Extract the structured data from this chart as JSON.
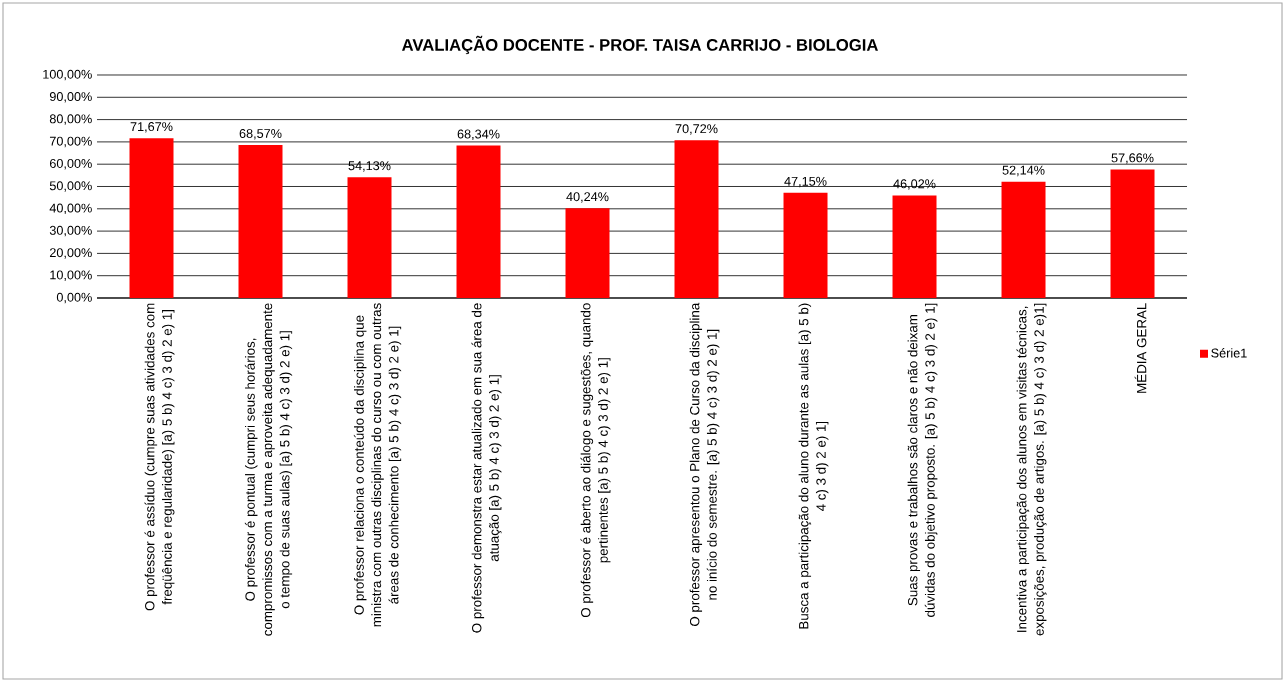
{
  "chart_data": {
    "type": "bar",
    "title": "AVALIAÇÃO DOCENTE - PROF. TAISA CARRIJO - BIOLOGIA",
    "categories": [
      "O professor é assíduo (cumpre suas atividades com freqüência e regularidade) [a) 5 b) 4 c) 3 d) 2 e) 1]",
      "O professor é pontual (cumpri seus horários, compromissos com a turma e aproveita adequadamente o tempo de suas aulas) [a) 5 b) 4 c) 3 d) 2 e) 1]",
      "O professor relaciona o conteúdo da disciplina que ministra com outras disciplinas do curso ou com outras áreas de conhecimento [a) 5 b) 4 c) 3 d) 2 e) 1]",
      "O professor demonstra estar atualizado em sua área de atuação [a) 5 b) 4 c) 3 d) 2 e) 1]",
      "O professor é aberto ao diálogo e sugestões, quando pertinentes [a) 5 b) 4 c) 3 d) 2 e) 1]",
      "O professor apresentou o Plano de Curso da disciplina no início do semestre. [a) 5 b) 4 c) 3 d) 2 e) 1]",
      "Busca a participação do aluno durante as aulas [a) 5 b) 4 c) 3 d) 2 e) 1]",
      "Suas provas e trabalhos são claros e não deixam dúvidas do objetivo proposto. [a) 5 b) 4 c) 3 d) 2 e) 1]",
      "Incentiva a participação dos alunos em visitas técnicas, exposições, produção de artigos. [a) 5 b) 4 c) 3 d) 2 e)1]",
      "MÉDIA GERAL"
    ],
    "series": [
      {
        "name": "Série1",
        "color": "#ff0000",
        "values": [
          71.67,
          68.57,
          54.13,
          68.34,
          40.24,
          70.72,
          47.15,
          46.02,
          52.14,
          57.66
        ],
        "value_labels": [
          "71,67%",
          "68,57%",
          "54,13%",
          "68,34%",
          "40,24%",
          "70,72%",
          "47,15%",
          "46,02%",
          "52,14%",
          "57,66%"
        ]
      }
    ],
    "ylim": [
      0,
      100
    ],
    "yticks": [
      {
        "value": 0,
        "label": "0,00%"
      },
      {
        "value": 10,
        "label": "10,00%"
      },
      {
        "value": 20,
        "label": "20,00%"
      },
      {
        "value": 30,
        "label": "30,00%"
      },
      {
        "value": 40,
        "label": "40,00%"
      },
      {
        "value": 50,
        "label": "50,00%"
      },
      {
        "value": 60,
        "label": "60,00%"
      },
      {
        "value": 70,
        "label": "70,00%"
      },
      {
        "value": 80,
        "label": "80,00%"
      },
      {
        "value": 90,
        "label": "90,00%"
      },
      {
        "value": 100,
        "label": "100,00%"
      }
    ],
    "grid": "y",
    "legend": "right"
  }
}
